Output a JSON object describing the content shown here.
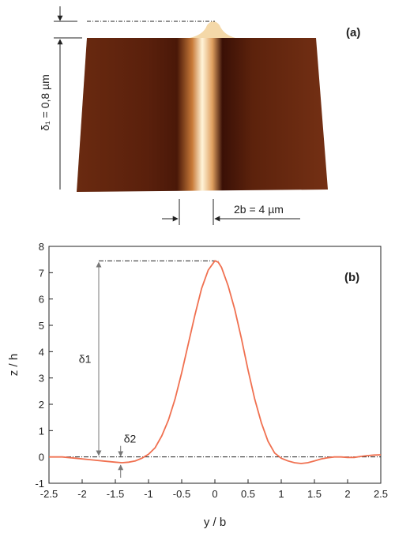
{
  "panels": {
    "a": {
      "label": "(a)",
      "delta1_annotation": "δ₁ = 0,8 µm",
      "width_annotation": "2b = 4 µm"
    }
  },
  "chart_data": {
    "type": "line",
    "panel_label": "(b)",
    "title": "",
    "xlabel": "y / b",
    "ylabel": "z / h",
    "xlim": [
      -2.5,
      2.5
    ],
    "ylim": [
      -1,
      8
    ],
    "xticks": [
      "-2.5",
      "-2",
      "-1.5",
      "-1",
      "-0.5",
      "0",
      "0.5",
      "1",
      "1.5",
      "2",
      "2.5"
    ],
    "yticks": [
      "-1",
      "0",
      "1",
      "2",
      "3",
      "4",
      "5",
      "6",
      "7",
      "8"
    ],
    "grid": false,
    "series": [
      {
        "color": "#f07050",
        "x": [
          -2.5,
          -2.3,
          -2.1,
          -1.9,
          -1.7,
          -1.5,
          -1.4,
          -1.3,
          -1.2,
          -1.1,
          -1.0,
          -0.9,
          -0.8,
          -0.7,
          -0.6,
          -0.5,
          -0.4,
          -0.3,
          -0.2,
          -0.1,
          0.0,
          0.05,
          0.1,
          0.2,
          0.3,
          0.4,
          0.5,
          0.6,
          0.7,
          0.8,
          0.9,
          1.0,
          1.1,
          1.2,
          1.3,
          1.4,
          1.5,
          1.6,
          1.7,
          1.8,
          1.9,
          2.0,
          2.1,
          2.2,
          2.3,
          2.4,
          2.5
        ],
        "y": [
          0.0,
          0.0,
          -0.05,
          -0.1,
          -0.15,
          -0.2,
          -0.22,
          -0.2,
          -0.15,
          -0.05,
          0.1,
          0.35,
          0.8,
          1.4,
          2.2,
          3.2,
          4.3,
          5.4,
          6.4,
          7.1,
          7.45,
          7.4,
          7.2,
          6.5,
          5.6,
          4.5,
          3.3,
          2.2,
          1.3,
          0.6,
          0.15,
          -0.05,
          -0.15,
          -0.22,
          -0.25,
          -0.22,
          -0.15,
          -0.08,
          -0.03,
          0.0,
          0.0,
          -0.02,
          -0.02,
          0.02,
          0.05,
          0.07,
          0.08
        ]
      }
    ],
    "annotations": {
      "delta1": "δ1",
      "delta2": "δ2"
    }
  }
}
